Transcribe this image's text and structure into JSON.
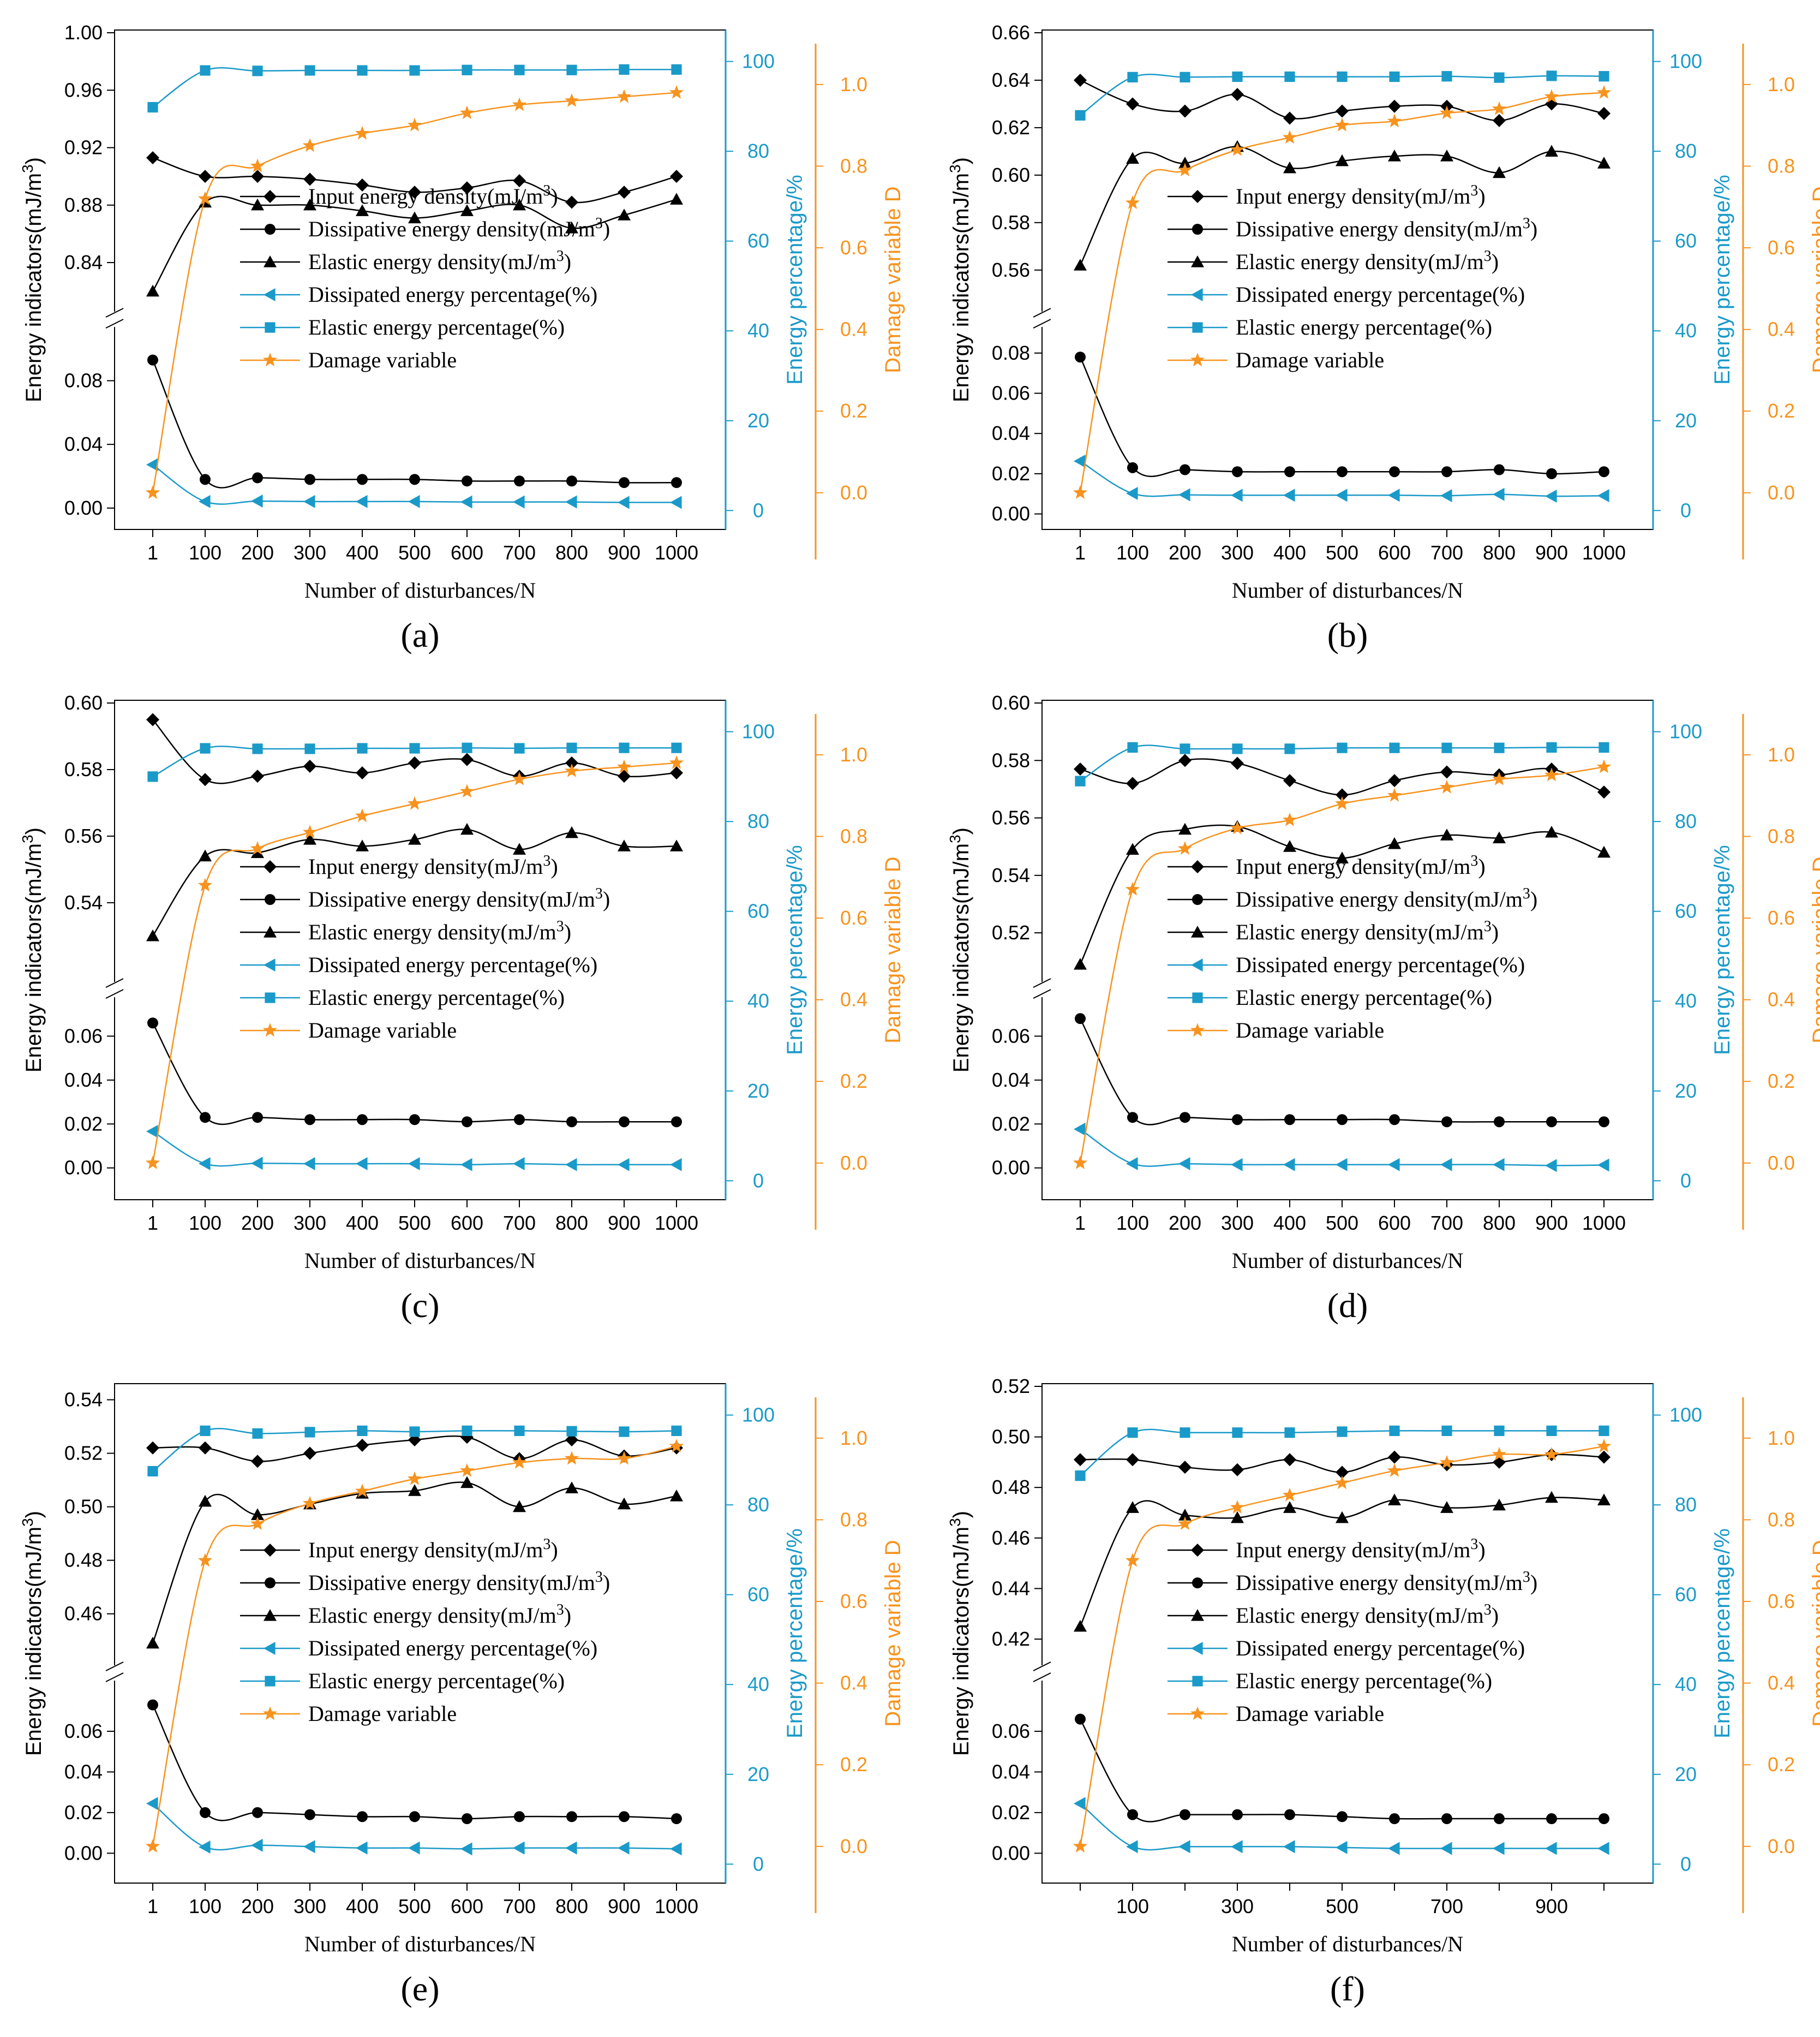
{
  "figure": {
    "colors": {
      "black": "#000000",
      "blue": "#1a9ac9",
      "orange": "#f7931e"
    },
    "common": {
      "xlabel": "Number of disturbances/N",
      "ylabel_left": "Energy indicators(mJ/m³)",
      "ylabel_right1": "Energy percentage/%",
      "ylabel_right2": "Damage variable D",
      "legend": [
        {
          "text": "Input energy density(mJ/m³)",
          "marker": "diamond",
          "color": "#000000"
        },
        {
          "text": "Dissipative energy density(mJ/m³)",
          "marker": "circle",
          "color": "#000000"
        },
        {
          "text": "Elastic energy density(mJ/m³)",
          "marker": "triangle",
          "color": "#000000"
        },
        {
          "text": "Dissipated energy percentage(%)",
          "marker": "left-triangle",
          "color": "#1a9ac9"
        },
        {
          "text": "Elastic energy percentage(%)",
          "marker": "square",
          "color": "#1a9ac9"
        },
        {
          "text": "Damage variable",
          "marker": "star",
          "color": "#f7931e"
        }
      ],
      "right1_ticks": [
        0,
        20,
        40,
        60,
        80,
        100
      ],
      "right1_range": [
        -3,
        107
      ],
      "right2_ticks": [
        "0.0",
        "0.2",
        "0.4",
        "0.6",
        "0.8",
        "1.0"
      ],
      "right2_range": [
        -0.15,
        1.1
      ]
    }
  },
  "chart_data": [
    {
      "type": "line",
      "panel_label": "(a)",
      "x": [
        1,
        100,
        200,
        300,
        400,
        500,
        600,
        700,
        800,
        900,
        1000
      ],
      "x_tick_labels": [
        "1",
        "100",
        "200",
        "300",
        "400",
        "500",
        "600",
        "700",
        "800",
        "900",
        "1000"
      ],
      "y_upper": {
        "range": [
          0.81,
          1.0
        ],
        "ticks": [
          "0.84",
          "0.88",
          "0.92",
          "0.96",
          "1.00"
        ]
      },
      "y_lower": {
        "range": [
          -0.01,
          0.11
        ],
        "ticks": [
          "0.00",
          "0.04",
          "0.08"
        ]
      },
      "series": [
        {
          "name": "Input energy density(mJ/m³)",
          "axis": "left",
          "values": [
            0.913,
            0.9,
            0.9,
            0.898,
            0.894,
            0.889,
            0.892,
            0.897,
            0.882,
            0.889,
            0.9
          ]
        },
        {
          "name": "Dissipative energy density(mJ/m³)",
          "axis": "left",
          "values": [
            0.093,
            0.018,
            0.019,
            0.018,
            0.018,
            0.018,
            0.017,
            0.017,
            0.017,
            0.016,
            0.016
          ]
        },
        {
          "name": "Elastic energy density(mJ/m³)",
          "axis": "left",
          "values": [
            0.82,
            0.882,
            0.88,
            0.88,
            0.876,
            0.871,
            0.876,
            0.88,
            0.864,
            0.873,
            0.884
          ]
        },
        {
          "name": "Dissipated energy percentage(%)",
          "axis": "right1",
          "values": [
            10.2,
            2.0,
            2.1,
            2.0,
            2.0,
            2.0,
            1.9,
            1.9,
            1.9,
            1.8,
            1.8
          ]
        },
        {
          "name": "Elastic energy percentage(%)",
          "axis": "right1",
          "values": [
            89.8,
            98.0,
            97.9,
            98.0,
            98.0,
            98.0,
            98.1,
            98.1,
            98.1,
            98.2,
            98.2
          ]
        },
        {
          "name": "Damage variable",
          "axis": "right2",
          "values": [
            0.0,
            0.72,
            0.8,
            0.85,
            0.88,
            0.9,
            0.93,
            0.95,
            0.96,
            0.97,
            0.98
          ]
        }
      ]
    },
    {
      "type": "line",
      "panel_label": "(b)",
      "x": [
        1,
        100,
        200,
        300,
        400,
        500,
        600,
        700,
        800,
        900,
        1000
      ],
      "x_tick_labels": [
        "1",
        "100",
        "200",
        "300",
        "400",
        "500",
        "600",
        "700",
        "800",
        "900",
        "1000"
      ],
      "y_upper": {
        "range": [
          0.545,
          0.66
        ],
        "ticks": [
          "0.56",
          "0.58",
          "0.60",
          "0.62",
          "0.64",
          "0.66"
        ]
      },
      "y_lower": {
        "range": [
          -0.005,
          0.09
        ],
        "ticks": [
          "0.00",
          "0.02",
          "0.04",
          "0.06",
          "0.08"
        ]
      },
      "series": [
        {
          "name": "Input energy density(mJ/m³)",
          "axis": "left",
          "values": [
            0.64,
            0.63,
            0.627,
            0.634,
            0.624,
            0.627,
            0.629,
            0.629,
            0.623,
            0.63,
            0.626
          ]
        },
        {
          "name": "Dissipative energy density(mJ/m³)",
          "axis": "left",
          "values": [
            0.078,
            0.023,
            0.022,
            0.021,
            0.021,
            0.021,
            0.021,
            0.021,
            0.022,
            0.02,
            0.021
          ]
        },
        {
          "name": "Elastic energy density(mJ/m³)",
          "axis": "left",
          "values": [
            0.562,
            0.607,
            0.605,
            0.612,
            0.603,
            0.606,
            0.608,
            0.608,
            0.601,
            0.61,
            0.605
          ]
        },
        {
          "name": "Dissipated energy percentage(%)",
          "axis": "right1",
          "values": [
            11.0,
            3.8,
            3.5,
            3.4,
            3.4,
            3.4,
            3.4,
            3.3,
            3.6,
            3.2,
            3.3
          ]
        },
        {
          "name": "Elastic energy percentage(%)",
          "axis": "right1",
          "values": [
            88.0,
            96.5,
            96.5,
            96.6,
            96.6,
            96.6,
            96.6,
            96.7,
            96.4,
            96.8,
            96.7
          ]
        },
        {
          "name": "Damage variable",
          "axis": "right2",
          "values": [
            0.0,
            0.71,
            0.79,
            0.84,
            0.87,
            0.9,
            0.91,
            0.93,
            0.94,
            0.97,
            0.98
          ]
        }
      ]
    },
    {
      "type": "line",
      "panel_label": "(c)",
      "x": [
        1,
        100,
        200,
        300,
        400,
        500,
        600,
        700,
        800,
        900,
        1000
      ],
      "x_tick_labels": [
        "1",
        "100",
        "200",
        "300",
        "400",
        "500",
        "600",
        "700",
        "800",
        "900",
        "1000"
      ],
      "y_upper": {
        "range": [
          0.518,
          0.6
        ],
        "ticks": [
          "0.54",
          "0.56",
          "0.58",
          "0.60"
        ]
      },
      "y_lower": {
        "range": [
          -0.012,
          0.075
        ],
        "ticks": [
          "0.00",
          "0.02",
          "0.04",
          "0.06"
        ]
      },
      "series": [
        {
          "name": "Input energy density(mJ/m³)",
          "axis": "left",
          "values": [
            0.595,
            0.577,
            0.578,
            0.581,
            0.579,
            0.582,
            0.583,
            0.578,
            0.582,
            0.578,
            0.579
          ]
        },
        {
          "name": "Dissipative energy density(mJ/m³)",
          "axis": "left",
          "values": [
            0.066,
            0.023,
            0.023,
            0.022,
            0.022,
            0.022,
            0.021,
            0.022,
            0.021,
            0.021,
            0.021
          ]
        },
        {
          "name": "Elastic energy density(mJ/m³)",
          "axis": "left",
          "values": [
            0.53,
            0.554,
            0.555,
            0.559,
            0.557,
            0.559,
            0.562,
            0.556,
            0.561,
            0.557,
            0.557
          ]
        },
        {
          "name": "Dissipated energy percentage(%)",
          "axis": "right1",
          "values": [
            11.0,
            3.8,
            3.9,
            3.8,
            3.8,
            3.8,
            3.6,
            3.8,
            3.6,
            3.6,
            3.6
          ]
        },
        {
          "name": "Elastic energy percentage(%)",
          "axis": "right1",
          "values": [
            90.0,
            96.3,
            96.2,
            96.2,
            96.3,
            96.3,
            96.4,
            96.3,
            96.4,
            96.4,
            96.4
          ]
        },
        {
          "name": "Damage variable",
          "axis": "right2",
          "values": [
            0.0,
            0.68,
            0.77,
            0.81,
            0.85,
            0.88,
            0.91,
            0.94,
            0.96,
            0.97,
            0.98
          ]
        }
      ]
    },
    {
      "type": "line",
      "panel_label": "(d)",
      "x": [
        1,
        100,
        200,
        300,
        400,
        500,
        600,
        700,
        800,
        900,
        1000
      ],
      "x_tick_labels": [
        "1",
        "100",
        "200",
        "300",
        "400",
        "500",
        "600",
        "700",
        "800",
        "900",
        "1000"
      ],
      "y_upper": {
        "range": [
          0.505,
          0.6
        ],
        "ticks": [
          "0.52",
          "0.54",
          "0.56",
          "0.58",
          "0.60"
        ]
      },
      "y_lower": {
        "range": [
          -0.012,
          0.075
        ],
        "ticks": [
          "0.00",
          "0.02",
          "0.04",
          "0.06"
        ]
      },
      "series": [
        {
          "name": "Input energy density(mJ/m³)",
          "axis": "left",
          "values": [
            0.577,
            0.572,
            0.58,
            0.579,
            0.573,
            0.568,
            0.573,
            0.576,
            0.575,
            0.577,
            0.569
          ]
        },
        {
          "name": "Dissipative energy density(mJ/m³)",
          "axis": "left",
          "values": [
            0.068,
            0.023,
            0.023,
            0.022,
            0.022,
            0.022,
            0.022,
            0.021,
            0.021,
            0.021,
            0.021
          ]
        },
        {
          "name": "Elastic energy density(mJ/m³)",
          "axis": "left",
          "values": [
            0.509,
            0.549,
            0.556,
            0.557,
            0.55,
            0.546,
            0.551,
            0.554,
            0.553,
            0.555,
            0.548
          ]
        },
        {
          "name": "Dissipated energy percentage(%)",
          "axis": "right1",
          "values": [
            11.5,
            3.8,
            3.8,
            3.6,
            3.6,
            3.6,
            3.6,
            3.6,
            3.6,
            3.4,
            3.5
          ]
        },
        {
          "name": "Elastic energy percentage(%)",
          "axis": "right1",
          "values": [
            89.0,
            96.5,
            96.2,
            96.2,
            96.2,
            96.4,
            96.4,
            96.4,
            96.4,
            96.5,
            96.5
          ]
        },
        {
          "name": "Damage variable",
          "axis": "right2",
          "values": [
            0.0,
            0.67,
            0.77,
            0.82,
            0.84,
            0.88,
            0.9,
            0.92,
            0.94,
            0.95,
            0.97
          ]
        }
      ]
    },
    {
      "type": "line",
      "panel_label": "(e)",
      "x": [
        1,
        100,
        200,
        300,
        400,
        500,
        600,
        700,
        800,
        900,
        1000
      ],
      "x_tick_labels": [
        "1",
        "100",
        "200",
        "300",
        "400",
        "500",
        "600",
        "700",
        "800",
        "900",
        "1000"
      ],
      "y_upper": {
        "range": [
          0.443,
          0.545
        ],
        "ticks": [
          "0.46",
          "0.48",
          "0.50",
          "0.52",
          "0.54"
        ]
      },
      "y_lower": {
        "range": [
          -0.012,
          0.082
        ],
        "ticks": [
          "0.00",
          "0.02",
          "0.04",
          "0.06"
        ]
      },
      "series": [
        {
          "name": "Input energy density(mJ/m³)",
          "axis": "left",
          "values": [
            0.522,
            0.522,
            0.517,
            0.52,
            0.523,
            0.525,
            0.526,
            0.518,
            0.525,
            0.519,
            0.522
          ]
        },
        {
          "name": "Dissipative energy density(mJ/m³)",
          "axis": "left",
          "values": [
            0.073,
            0.02,
            0.02,
            0.019,
            0.018,
            0.018,
            0.017,
            0.018,
            0.018,
            0.018,
            0.017
          ]
        },
        {
          "name": "Elastic energy density(mJ/m³)",
          "axis": "left",
          "values": [
            0.449,
            0.502,
            0.497,
            0.501,
            0.505,
            0.506,
            0.509,
            0.5,
            0.507,
            0.501,
            0.504
          ]
        },
        {
          "name": "Dissipated energy percentage(%)",
          "axis": "right1",
          "values": [
            13.5,
            3.8,
            4.2,
            3.9,
            3.6,
            3.6,
            3.4,
            3.6,
            3.6,
            3.6,
            3.4
          ]
        },
        {
          "name": "Elastic energy percentage(%)",
          "axis": "right1",
          "values": [
            87.5,
            96.5,
            95.9,
            96.2,
            96.5,
            96.3,
            96.5,
            96.5,
            96.4,
            96.3,
            96.5
          ]
        },
        {
          "name": "Damage variable",
          "axis": "right2",
          "values": [
            0.0,
            0.7,
            0.79,
            0.84,
            0.87,
            0.9,
            0.92,
            0.94,
            0.95,
            0.95,
            0.98
          ]
        }
      ]
    },
    {
      "type": "line",
      "panel_label": "(f)",
      "x": [
        1,
        100,
        200,
        300,
        400,
        500,
        600,
        700,
        800,
        900,
        1000
      ],
      "x_tick_labels": [
        "100",
        "300",
        "500",
        "700",
        "900"
      ],
      "y_upper": {
        "range": [
          0.412,
          0.52
        ],
        "ticks": [
          "0.42",
          "0.44",
          "0.46",
          "0.48",
          "0.50",
          "0.52"
        ]
      },
      "y_lower": {
        "range": [
          -0.012,
          0.082
        ],
        "ticks": [
          "0.00",
          "0.02",
          "0.04",
          "0.06"
        ]
      },
      "series": [
        {
          "name": "Input energy density(mJ/m³)",
          "axis": "left",
          "values": [
            0.491,
            0.491,
            0.488,
            0.487,
            0.491,
            0.486,
            0.492,
            0.489,
            0.49,
            0.493,
            0.492
          ]
        },
        {
          "name": "Dissipative energy density(mJ/m³)",
          "axis": "left",
          "values": [
            0.066,
            0.019,
            0.019,
            0.019,
            0.019,
            0.018,
            0.017,
            0.017,
            0.017,
            0.017,
            0.017
          ]
        },
        {
          "name": "Elastic energy density(mJ/m³)",
          "axis": "left",
          "values": [
            0.425,
            0.472,
            0.469,
            0.468,
            0.472,
            0.468,
            0.475,
            0.472,
            0.473,
            0.476,
            0.475
          ]
        },
        {
          "name": "Dissipated energy percentage(%)",
          "axis": "right1",
          "values": [
            13.5,
            3.9,
            3.9,
            3.9,
            3.9,
            3.7,
            3.5,
            3.5,
            3.5,
            3.5,
            3.5
          ]
        },
        {
          "name": "Elastic energy percentage(%)",
          "axis": "right1",
          "values": [
            86.5,
            96.1,
            96.1,
            96.1,
            96.1,
            96.3,
            96.5,
            96.5,
            96.5,
            96.5,
            96.5
          ]
        },
        {
          "name": "Damage variable",
          "axis": "right2",
          "values": [
            0.0,
            0.7,
            0.79,
            0.83,
            0.86,
            0.89,
            0.92,
            0.94,
            0.96,
            0.96,
            0.98
          ]
        }
      ]
    }
  ]
}
